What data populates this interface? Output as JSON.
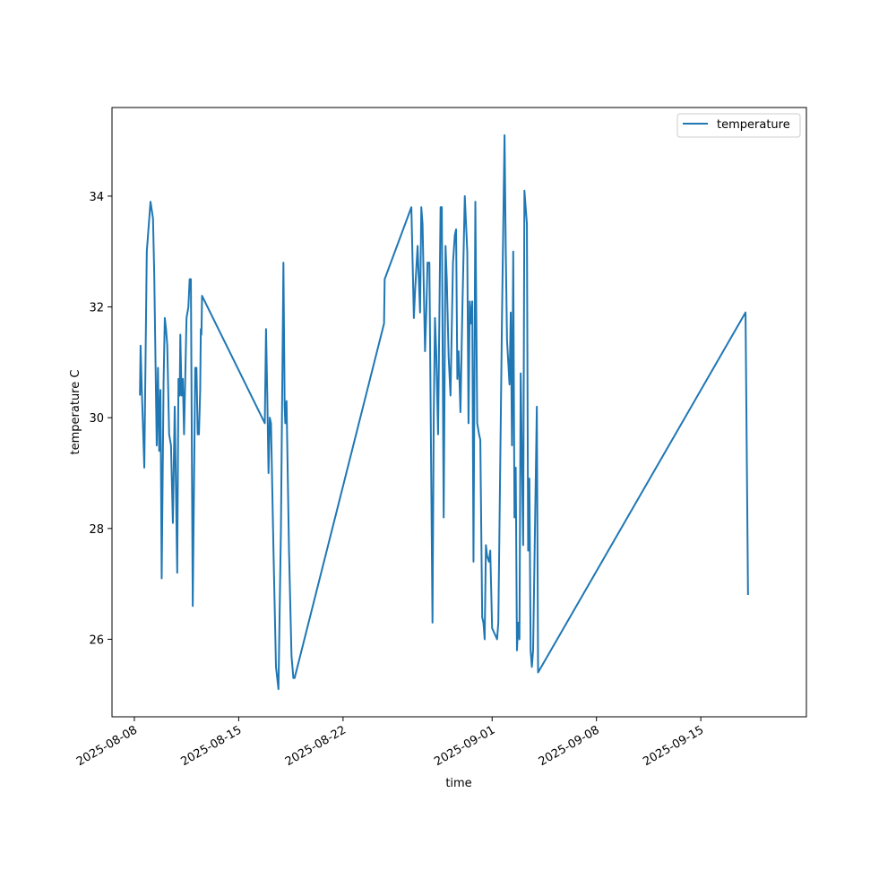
{
  "chart_data": {
    "type": "line",
    "title": "",
    "xlabel": "time",
    "ylabel": "temperature C",
    "x_ticks": [
      "2025-08-08",
      "2025-08-15",
      "2025-08-22",
      "2025-09-01",
      "2025-09-08",
      "2025-09-15"
    ],
    "y_ticks": [
      26,
      28,
      30,
      32,
      34
    ],
    "xlim": [
      "2025-08-06T12:00",
      "2025-09-22T02:00"
    ],
    "ylim": [
      24.6,
      35.6
    ],
    "grid": false,
    "legend": {
      "position": "top-right",
      "entries": [
        "temperature"
      ]
    },
    "colors": {
      "series": "#1f77b4",
      "axes": "#000000",
      "background": "#ffffff"
    },
    "series": [
      {
        "name": "temperature",
        "points": [
          [
            "2025-08-08T09:00",
            30.4
          ],
          [
            "2025-08-08T10:00",
            31.3
          ],
          [
            "2025-08-08T12:00",
            30.5
          ],
          [
            "2025-08-08T16:00",
            29.1
          ],
          [
            "2025-08-08T20:00",
            33.0
          ],
          [
            "2025-08-09T02:00",
            33.9
          ],
          [
            "2025-08-09T06:00",
            33.6
          ],
          [
            "2025-08-09T08:00",
            32.6
          ],
          [
            "2025-08-09T12:00",
            29.5
          ],
          [
            "2025-08-09T14:00",
            30.9
          ],
          [
            "2025-08-09T16:00",
            29.4
          ],
          [
            "2025-08-09T18:00",
            30.5
          ],
          [
            "2025-08-09T20:00",
            27.1
          ],
          [
            "2025-08-09T23:00",
            30.6
          ],
          [
            "2025-08-10T01:00",
            31.8
          ],
          [
            "2025-08-10T03:00",
            31.6
          ],
          [
            "2025-08-10T05:00",
            31.3
          ],
          [
            "2025-08-10T08:00",
            29.7
          ],
          [
            "2025-08-10T11:00",
            29.5
          ],
          [
            "2025-08-10T14:00",
            28.1
          ],
          [
            "2025-08-10T17:00",
            30.2
          ],
          [
            "2025-08-10T21:00",
            27.2
          ],
          [
            "2025-08-10T23:00",
            30.7
          ],
          [
            "2025-08-11T01:00",
            30.4
          ],
          [
            "2025-08-11T02:00",
            31.5
          ],
          [
            "2025-08-11T04:00",
            30.4
          ],
          [
            "2025-08-11T06:00",
            30.7
          ],
          [
            "2025-08-11T08:00",
            29.7
          ],
          [
            "2025-08-11T12:00",
            31.8
          ],
          [
            "2025-08-11T15:00",
            32.0
          ],
          [
            "2025-08-11T17:00",
            32.5
          ],
          [
            "2025-08-11T19:00",
            32.5
          ],
          [
            "2025-08-11T22:00",
            26.6
          ],
          [
            "2025-08-12T02:00",
            30.9
          ],
          [
            "2025-08-12T04:00",
            30.9
          ],
          [
            "2025-08-12T06:00",
            29.7
          ],
          [
            "2025-08-12T08:00",
            29.7
          ],
          [
            "2025-08-12T10:00",
            30.5
          ],
          [
            "2025-08-12T11:00",
            31.6
          ],
          [
            "2025-08-12T12:00",
            31.5
          ],
          [
            "2025-08-12T13:00",
            32.2
          ],
          [
            "2025-08-16T18:00",
            29.9
          ],
          [
            "2025-08-16T20:00",
            31.6
          ],
          [
            "2025-08-16T22:00",
            30.4
          ],
          [
            "2025-08-17T00:00",
            29.0
          ],
          [
            "2025-08-17T02:00",
            30.0
          ],
          [
            "2025-08-17T04:00",
            29.9
          ],
          [
            "2025-08-17T08:00",
            27.6
          ],
          [
            "2025-08-17T12:00",
            25.5
          ],
          [
            "2025-08-17T16:00",
            25.1
          ],
          [
            "2025-08-17T20:00",
            28.0
          ],
          [
            "2025-08-18T00:00",
            32.8
          ],
          [
            "2025-08-18T02:00",
            30.2
          ],
          [
            "2025-08-18T03:00",
            29.9
          ],
          [
            "2025-08-18T05:00",
            30.3
          ],
          [
            "2025-08-18T09:00",
            27.6
          ],
          [
            "2025-08-18T13:00",
            25.7
          ],
          [
            "2025-08-18T16:00",
            25.3
          ],
          [
            "2025-08-18T18:00",
            25.3
          ],
          [
            "2025-08-24T18:00",
            31.7
          ],
          [
            "2025-08-24T19:00",
            32.5
          ],
          [
            "2025-08-26T14:00",
            33.8
          ],
          [
            "2025-08-26T18:00",
            31.8
          ],
          [
            "2025-08-26T20:00",
            32.3
          ],
          [
            "2025-08-27T00:00",
            33.1
          ],
          [
            "2025-08-27T04:00",
            31.9
          ],
          [
            "2025-08-27T06:00",
            33.8
          ],
          [
            "2025-08-27T08:00",
            33.5
          ],
          [
            "2025-08-27T12:00",
            31.2
          ],
          [
            "2025-08-27T14:00",
            31.9
          ],
          [
            "2025-08-27T16:00",
            32.8
          ],
          [
            "2025-08-27T19:00",
            32.8
          ],
          [
            "2025-08-28T00:00",
            26.3
          ],
          [
            "2025-08-28T02:00",
            30.0
          ],
          [
            "2025-08-28T04:00",
            31.8
          ],
          [
            "2025-08-28T06:00",
            31.2
          ],
          [
            "2025-08-28T09:00",
            29.7
          ],
          [
            "2025-08-28T13:00",
            33.8
          ],
          [
            "2025-08-28T15:00",
            33.8
          ],
          [
            "2025-08-28T18:00",
            28.2
          ],
          [
            "2025-08-28T21:00",
            33.1
          ],
          [
            "2025-08-28T23:00",
            32.5
          ],
          [
            "2025-08-29T02:00",
            31.1
          ],
          [
            "2025-08-29T05:00",
            30.4
          ],
          [
            "2025-08-29T09:00",
            32.8
          ],
          [
            "2025-08-29T12:00",
            33.3
          ],
          [
            "2025-08-29T14:00",
            33.4
          ],
          [
            "2025-08-29T16:00",
            30.7
          ],
          [
            "2025-08-29T18:00",
            31.2
          ],
          [
            "2025-08-29T21:00",
            30.1
          ],
          [
            "2025-08-30T00:00",
            31.9
          ],
          [
            "2025-08-30T04:00",
            34.0
          ],
          [
            "2025-08-30T06:00",
            33.5
          ],
          [
            "2025-08-30T08:00",
            33.0
          ],
          [
            "2025-08-30T10:00",
            29.9
          ],
          [
            "2025-08-30T12:00",
            32.1
          ],
          [
            "2025-08-30T14:00",
            31.7
          ],
          [
            "2025-08-30T16:00",
            32.1
          ],
          [
            "2025-08-30T18:00",
            27.4
          ],
          [
            "2025-08-30T21:00",
            33.9
          ],
          [
            "2025-08-31T00:00",
            29.9
          ],
          [
            "2025-08-31T03:00",
            29.7
          ],
          [
            "2025-08-31T05:00",
            29.6
          ],
          [
            "2025-08-31T08:00",
            26.4
          ],
          [
            "2025-08-31T10:00",
            26.3
          ],
          [
            "2025-08-31T12:00",
            26.0
          ],
          [
            "2025-08-31T14:00",
            27.7
          ],
          [
            "2025-08-31T16:00",
            27.5
          ],
          [
            "2025-08-31T19:00",
            27.4
          ],
          [
            "2025-08-31T21:00",
            27.6
          ],
          [
            "2025-09-01T00:00",
            26.2
          ],
          [
            "2025-09-01T04:00",
            26.1
          ],
          [
            "2025-09-01T08:00",
            26.0
          ],
          [
            "2025-09-01T10:00",
            26.3
          ],
          [
            "2025-09-01T16:00",
            31.9
          ],
          [
            "2025-09-01T20:00",
            35.1
          ],
          [
            "2025-09-01T22:00",
            33.0
          ],
          [
            "2025-09-02T00:00",
            31.4
          ],
          [
            "2025-09-02T04:00",
            30.6
          ],
          [
            "2025-09-02T06:00",
            31.9
          ],
          [
            "2025-09-02T08:00",
            29.5
          ],
          [
            "2025-09-02T10:00",
            33.0
          ],
          [
            "2025-09-02T12:00",
            28.2
          ],
          [
            "2025-09-02T14:00",
            29.1
          ],
          [
            "2025-09-02T16:00",
            25.8
          ],
          [
            "2025-09-02T18:00",
            26.3
          ],
          [
            "2025-09-02T20:00",
            26.0
          ],
          [
            "2025-09-02T22:00",
            30.8
          ],
          [
            "2025-09-03T02:00",
            27.7
          ],
          [
            "2025-09-03T04:00",
            34.1
          ],
          [
            "2025-09-03T08:00",
            33.5
          ],
          [
            "2025-09-03T10:00",
            27.6
          ],
          [
            "2025-09-03T12:00",
            28.9
          ],
          [
            "2025-09-03T14:00",
            25.8
          ],
          [
            "2025-09-03T16:00",
            25.5
          ],
          [
            "2025-09-03T18:00",
            25.8
          ],
          [
            "2025-09-04T00:00",
            30.2
          ],
          [
            "2025-09-04T02:00",
            25.4
          ],
          [
            "2025-09-18T00:00",
            31.9
          ],
          [
            "2025-09-18T04:00",
            26.8
          ]
        ]
      }
    ]
  }
}
